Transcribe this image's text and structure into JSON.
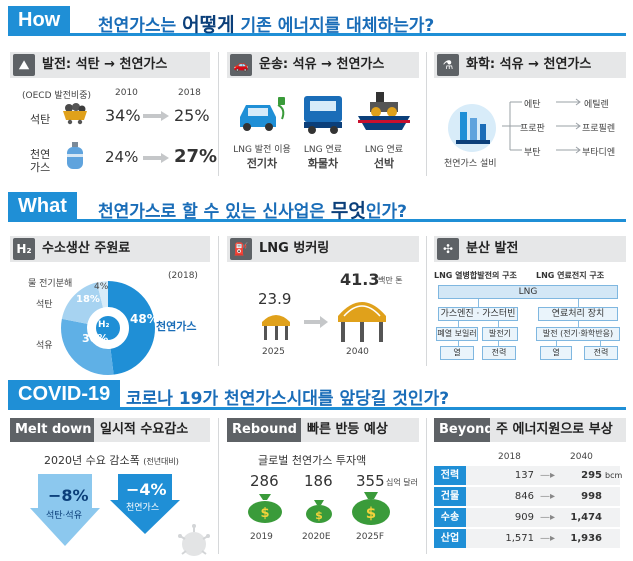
{
  "how": {
    "tag": "How",
    "title_a": "천연가스는 ",
    "title_em": "어떻게",
    "title_b": " 기존 에너지를 대체하는가?",
    "power": {
      "label": "발전: 석탄 → 천연가스",
      "oecd": "(OECD 발전비중)",
      "year1": "2010",
      "year2": "2018",
      "coal_label": "석탄",
      "coal_2010": "34%",
      "coal_2018": "25%",
      "gas_label_1": "천연",
      "gas_label_2": "가스",
      "gas_2010": "24%",
      "gas_2018": "27%"
    },
    "transport": {
      "label": "운송: 석유 → 천연가스",
      "items": [
        {
          "line1": "LNG 발전 이용",
          "line2": "전기차"
        },
        {
          "line1": "LNG 연료",
          "line2": "화물차"
        },
        {
          "line1": "LNG 연료",
          "line2": "선박"
        }
      ]
    },
    "chem": {
      "label": "화학: 석유 → 천연가스",
      "facility": "천연가스 설비",
      "rows": [
        {
          "from": "에탄",
          "to": "에틸렌"
        },
        {
          "from": "프로판",
          "to": "프로필렌"
        },
        {
          "from": "부탄",
          "to": "부타디엔"
        }
      ]
    }
  },
  "what": {
    "tag": "What",
    "title_a": "천연가스로 할 수 있는 신사업은 ",
    "title_em": "무엇",
    "title_b": "인가?",
    "hydrogen": {
      "label": "수소생산 주원료",
      "icon": "H₂",
      "year": "(2018)",
      "center": "H₂",
      "legend_gas": "천연가스",
      "legend_water": "물 전기분해",
      "legend_coal": "석탄",
      "legend_oil": "석유"
    },
    "bunkering": {
      "label": "LNG 벙커링",
      "year1": "2025",
      "year2": "2040",
      "val1": "23.9",
      "val2": "41.3",
      "unit": "백만 톤"
    },
    "distributed": {
      "label": "분산 발전",
      "col1": "LNG 열병합발전의 구조",
      "col2": "LNG 연료전지 구조",
      "top": "LNG",
      "left_mid": "가스엔진 · 가스터빈",
      "left_l": "폐열 보일러",
      "left_r": "발전기",
      "left_out_l": "열",
      "left_out_r": "전력",
      "right_mid": "연료처리 장치",
      "right_low": "발전 (전기·화학반응)",
      "right_out_l": "열",
      "right_out_r": "전력"
    }
  },
  "covid": {
    "tag": "COVID-19",
    "title": "코로나 19가 천연가스시대를 앞당길 것인가?",
    "meltdown": {
      "tag": "Melt down",
      "label": "일시적 수요감소",
      "sub_a": "2020년 수요 감소폭",
      "sub_b": "(전년대비)",
      "oil_val": "−8%",
      "oil_label": "석탄·석유",
      "gas_val": "−4%",
      "gas_label": "천연가스"
    },
    "rebound": {
      "tag": "Rebound",
      "label": "빠른 반등 예상",
      "sub": "글로벌 천연가스 투자액",
      "unit": "십억 달러",
      "bags": [
        {
          "value": "286",
          "year": "2019"
        },
        {
          "value": "186",
          "year": "2020E"
        },
        {
          "value": "355",
          "year": "2025F"
        }
      ]
    },
    "beyond": {
      "tag": "Beyond",
      "label": "주 에너지원으로 부상",
      "year1": "2018",
      "year2": "2040",
      "unit": "bcm",
      "rows": [
        {
          "label": "전력",
          "v1": "137",
          "v2": "295"
        },
        {
          "label": "건물",
          "v1": "846",
          "v2": "998"
        },
        {
          "label": "수송",
          "v1": "909",
          "v2": "1,474"
        },
        {
          "label": "산업",
          "v1": "1,571",
          "v2": "1,936"
        }
      ]
    }
  },
  "colors": {
    "primary": "#1f8fd6",
    "dark": "#0b3f7a",
    "panel": "#e6e7e8",
    "icon": "#5e6266",
    "green": "#3a9b3a"
  }
}
